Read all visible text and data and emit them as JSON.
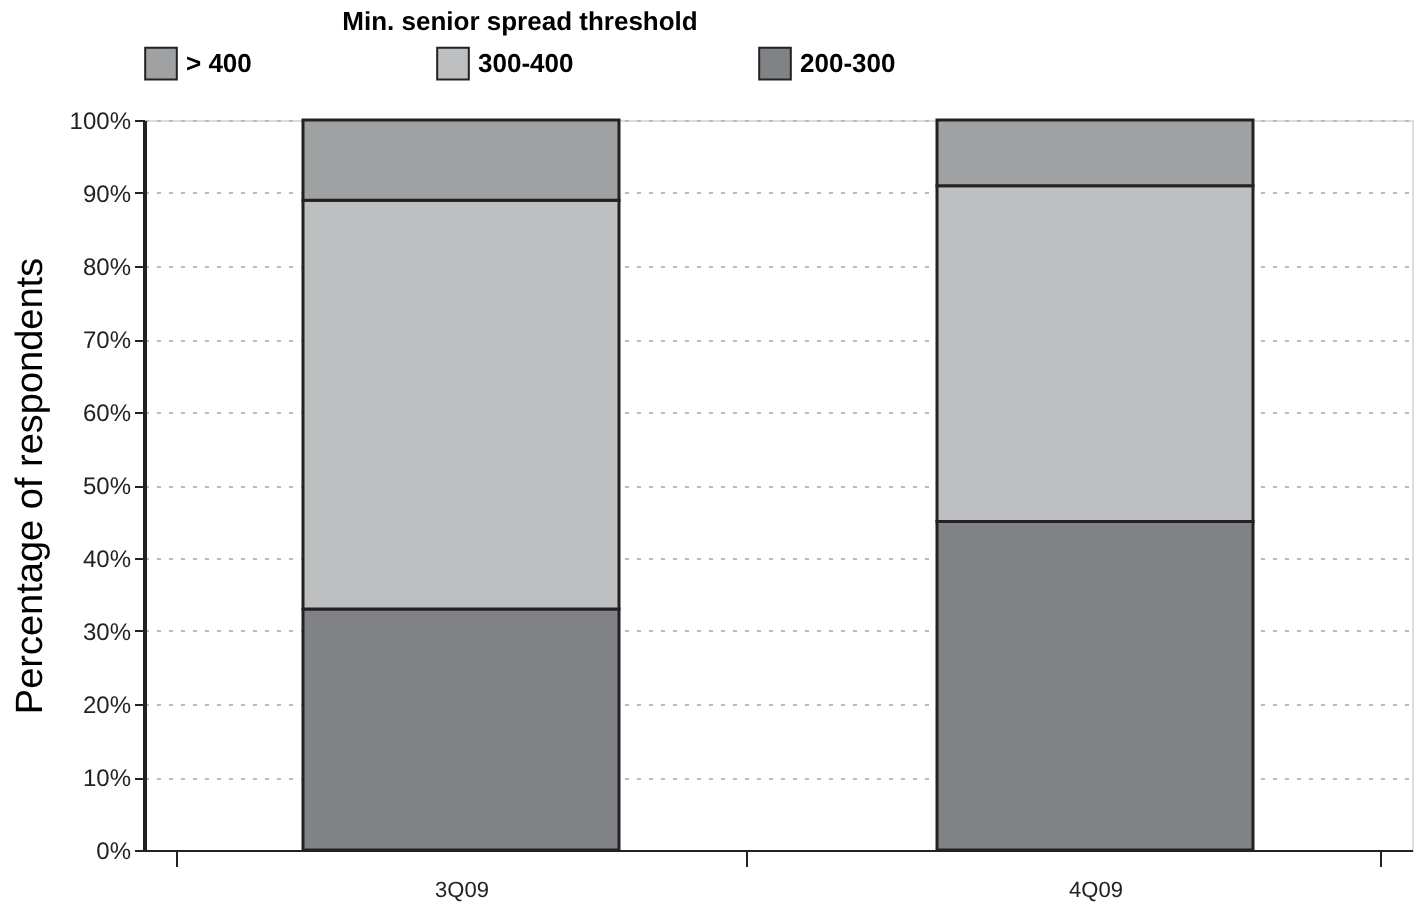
{
  "chart_data": {
    "type": "bar",
    "stacked": true,
    "ylabel": "Percentage of respondents",
    "legend_title": "Min. senior spread threshold",
    "legend": "top",
    "categories": [
      "3Q09",
      "4Q09"
    ],
    "series": [
      {
        "name": "200-300",
        "color": "#818286",
        "values": [
          33,
          45
        ]
      },
      {
        "name": "300-400",
        "color": "#bebfc1",
        "values": [
          56,
          46
        ]
      },
      {
        "name": "> 400",
        "color": "#a0a1a3",
        "values": [
          11,
          9
        ]
      }
    ],
    "ylim": [
      0,
      100
    ],
    "yticks": [
      {
        "value": 0,
        "label": "0%"
      },
      {
        "value": 10,
        "label": "10%"
      },
      {
        "value": 20,
        "label": "20%"
      },
      {
        "value": 30,
        "label": "30%"
      },
      {
        "value": 40,
        "label": "40%"
      },
      {
        "value": 50,
        "label": "50%"
      },
      {
        "value": 60,
        "label": "60%"
      },
      {
        "value": 70,
        "label": "70%"
      },
      {
        "value": 80,
        "label": "80%"
      },
      {
        "value": 90,
        "label": "90%"
      },
      {
        "value": 100,
        "label": "100%"
      }
    ],
    "grid": "y"
  }
}
